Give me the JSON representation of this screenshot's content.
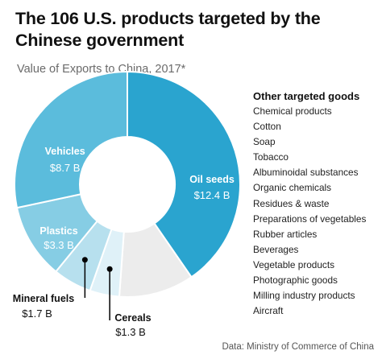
{
  "title": "The 106 U.S. products targeted by the Chinese government",
  "subtitle": "Value of Exports to China, 2017*",
  "chart_data": {
    "type": "pie",
    "donut": true,
    "unit": "B",
    "slices": [
      {
        "label": "Oil seeds",
        "value": 12.4,
        "display": "$12.4 B",
        "color": "#2aa4cf"
      },
      {
        "label": "Other targeted goods",
        "value": 3.3,
        "display": "",
        "color": "#ececec"
      },
      {
        "label": "Cereals",
        "value": 1.3,
        "display": "$1.3 B",
        "color": "#dff1f8"
      },
      {
        "label": "Mineral fuels",
        "value": 1.7,
        "display": "$1.7 B",
        "color": "#b7e0ee"
      },
      {
        "label": "Plastics",
        "value": 3.3,
        "display": "$3.3 B",
        "color": "#86cde4"
      },
      {
        "label": "Vehicles",
        "value": 8.7,
        "display": "$8.7 B",
        "color": "#5bbcdc"
      }
    ]
  },
  "other_goods": {
    "heading": "Other targeted goods",
    "items": [
      "Chemical products",
      "Cotton",
      "Soap",
      "Tobacco",
      "Albuminoidal substances",
      "Organic chemicals",
      "Residues & waste",
      "Preparations of vegetables",
      "Rubber articles",
      "Beverages",
      "Vegetable products",
      "Photographic goods",
      "Milling industry products",
      "Aircraft"
    ]
  },
  "source": "Data: Ministry of Commerce of China"
}
